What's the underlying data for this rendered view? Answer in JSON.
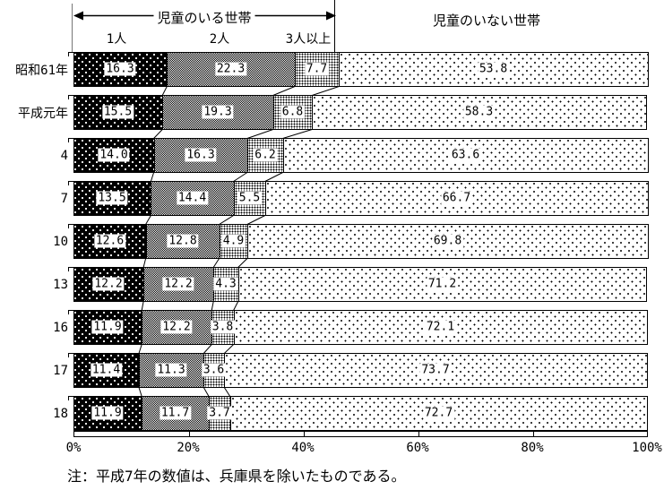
{
  "header": {
    "with_children_label": "児童のいる世帯",
    "without_children_label": "児童のいない世帯",
    "sub_labels": [
      "1人",
      "2人",
      "3人以上"
    ]
  },
  "chart_data": {
    "type": "bar",
    "stacked": true,
    "orientation": "horizontal",
    "unit": "%",
    "categories": [
      "昭和61年",
      "平成元年",
      "4",
      "7",
      "10",
      "13",
      "16",
      "17",
      "18"
    ],
    "series": [
      {
        "name": "児童のいる世帯 1人",
        "values": [
          16.3,
          15.5,
          14.0,
          13.5,
          12.6,
          12.2,
          11.9,
          11.4,
          11.9
        ]
      },
      {
        "name": "児童のいる世帯 2人",
        "values": [
          22.3,
          19.3,
          16.3,
          14.4,
          12.8,
          12.2,
          12.2,
          11.3,
          11.7
        ]
      },
      {
        "name": "児童のいる世帯 3人以上",
        "values": [
          7.7,
          6.8,
          6.2,
          5.5,
          4.9,
          4.3,
          3.8,
          3.6,
          3.7
        ]
      },
      {
        "name": "児童のいない世帯",
        "values": [
          53.8,
          58.3,
          63.6,
          66.7,
          69.8,
          71.2,
          72.1,
          73.7,
          72.7
        ]
      }
    ],
    "x_ticks": [
      "0%",
      "20%",
      "40%",
      "60%",
      "80%",
      "100%"
    ],
    "xlim": [
      0,
      100
    ],
    "grid": false,
    "value_labels": true,
    "legend_position": "none"
  },
  "note": "注：平成7年の数値は、兵庫県を除いたものである。"
}
